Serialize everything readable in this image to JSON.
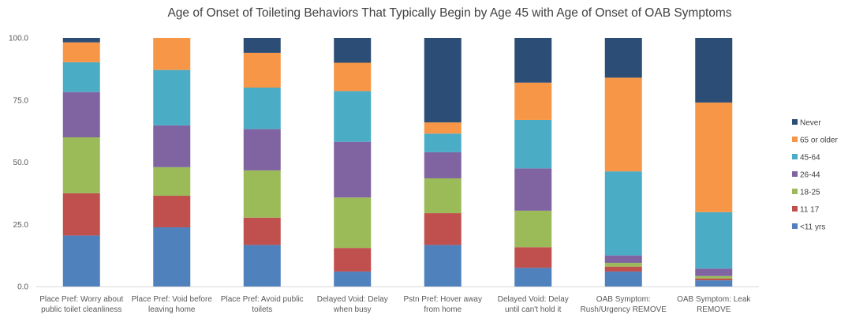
{
  "chart_data": {
    "type": "bar",
    "stacked": true,
    "title": "Age of Onset of Toileting Behaviors That Typically Begin by Age 45 with Age of Onset of OAB Symptoms",
    "xlabel": "",
    "ylabel": "",
    "ylim": [
      0,
      100
    ],
    "yticks": [
      "0.0",
      "25.0",
      "50.0",
      "75.0",
      "100.0"
    ],
    "grid": false,
    "legend_position": "right",
    "categories": [
      [
        "Place Pref: Worry about",
        "public toilet cleanliness"
      ],
      [
        "Place Pref: Void before",
        "leaving home"
      ],
      [
        "Place Pref: Avoid public",
        "toilets"
      ],
      [
        "Delayed Void: Delay",
        "when busy"
      ],
      [
        "Pstn Pref: Hover away",
        "from home"
      ],
      [
        "Delayed Void: Delay",
        "until can't hold it"
      ],
      [
        "OAB Symptom:",
        "Rush/Urgency REMOVE"
      ],
      [
        "OAB Symptom: Leak",
        "REMOVE"
      ]
    ],
    "series": [
      {
        "name": "<11 yrs",
        "color": "#4f81bd",
        "values": [
          20.5,
          23.8,
          16.7,
          6.0,
          16.7,
          7.5,
          6.0,
          2.5
        ]
      },
      {
        "name": "11 17",
        "color": "#c0504d",
        "values": [
          17.0,
          12.7,
          11.0,
          9.5,
          12.8,
          8.3,
          2.0,
          0.7
        ]
      },
      {
        "name": "18-25",
        "color": "#9bbb59",
        "values": [
          22.5,
          11.5,
          19.0,
          20.3,
          14.0,
          14.7,
          1.5,
          1.0
        ]
      },
      {
        "name": "26-44",
        "color": "#8064a2",
        "values": [
          18.2,
          16.8,
          16.6,
          22.4,
          10.5,
          17.0,
          3.0,
          3.0
        ]
      },
      {
        "name": "45-64",
        "color": "#4bacc6",
        "values": [
          12.0,
          22.3,
          16.7,
          20.4,
          7.5,
          19.5,
          33.8,
          22.7
        ]
      },
      {
        "name": "65 or older",
        "color": "#f79646",
        "values": [
          8.0,
          12.9,
          14.0,
          11.4,
          4.5,
          15.0,
          37.7,
          44.1
        ]
      },
      {
        "name": "Never",
        "color": "#2c4d75",
        "values": [
          1.8,
          0.0,
          6.0,
          10.0,
          34.0,
          18.0,
          16.0,
          26.0
        ]
      }
    ]
  }
}
